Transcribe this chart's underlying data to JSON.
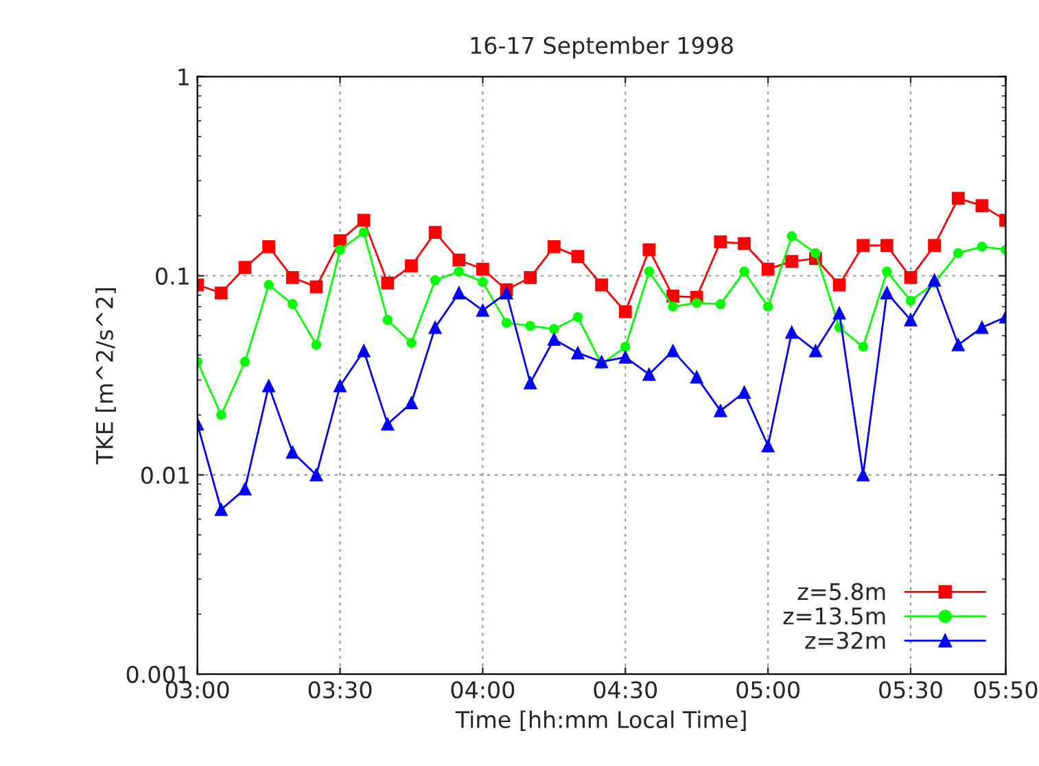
{
  "chart_data": {
    "type": "line",
    "title": "16-17 September 1998",
    "xlabel": "Time [hh:mm Local Time]",
    "ylabel": "TKE [m^2/s^2]",
    "x": [
      3.0,
      3.0833,
      3.1667,
      3.25,
      3.3333,
      3.4167,
      3.5,
      3.5833,
      3.6667,
      3.75,
      3.8333,
      3.9167,
      4.0,
      4.0833,
      4.1667,
      4.25,
      4.3333,
      4.4167,
      4.5,
      4.5833,
      4.6667,
      4.75,
      4.8333,
      4.9167,
      5.0,
      5.0833,
      5.1667,
      5.25,
      5.3333,
      5.4167,
      5.5,
      5.5833,
      5.6667,
      5.75,
      5.8333
    ],
    "series": [
      {
        "name": "z=5.8m",
        "color": "#ff0000",
        "marker": "square",
        "values": [
          0.09,
          0.082,
          0.11,
          0.14,
          0.098,
          0.088,
          0.15,
          0.19,
          0.092,
          0.112,
          0.165,
          0.12,
          0.108,
          0.085,
          0.098,
          0.14,
          0.125,
          0.09,
          0.066,
          0.135,
          0.079,
          0.078,
          0.148,
          0.145,
          0.108,
          0.118,
          0.122,
          0.09,
          0.142,
          0.142,
          0.098,
          0.142,
          0.245,
          0.225,
          0.19
        ]
      },
      {
        "name": "z=13.5m",
        "color": "#00ff00",
        "marker": "circle",
        "values": [
          0.037,
          0.02,
          0.037,
          0.09,
          0.072,
          0.045,
          0.135,
          0.165,
          0.06,
          0.046,
          0.095,
          0.105,
          0.093,
          0.058,
          0.056,
          0.054,
          0.062,
          0.036,
          0.044,
          0.105,
          0.07,
          0.073,
          0.072,
          0.105,
          0.07,
          0.158,
          0.13,
          0.055,
          0.044,
          0.105,
          0.075,
          0.092,
          0.13,
          0.14,
          0.135
        ]
      },
      {
        "name": "z=32m",
        "color": "#0000ff",
        "marker": "triangle",
        "values": [
          0.018,
          0.0067,
          0.0085,
          0.028,
          0.013,
          0.01,
          0.028,
          0.042,
          0.018,
          0.023,
          0.055,
          0.082,
          0.067,
          0.082,
          0.029,
          0.048,
          0.041,
          0.037,
          0.039,
          0.032,
          0.042,
          0.031,
          0.021,
          0.026,
          0.014,
          0.052,
          0.042,
          0.065,
          0.01,
          0.082,
          0.06,
          0.095,
          0.045,
          0.055,
          0.062
        ]
      }
    ],
    "log": true,
    "xlim": [
      3.0,
      5.8333
    ],
    "ylim": [
      0.001,
      1
    ],
    "xticks": [
      {
        "value": 3.0,
        "label": "03:00"
      },
      {
        "value": 3.5,
        "label": "03:30"
      },
      {
        "value": 4.0,
        "label": "04:00"
      },
      {
        "value": 4.5,
        "label": "04:30"
      },
      {
        "value": 5.0,
        "label": "05:00"
      },
      {
        "value": 5.5,
        "label": "05:30"
      },
      {
        "value": 5.8333,
        "label": "05:50"
      }
    ],
    "yticks": [
      0.001,
      0.01,
      0.1,
      1
    ],
    "grid": true,
    "legend": "bottom right",
    "line_style": "solid"
  }
}
